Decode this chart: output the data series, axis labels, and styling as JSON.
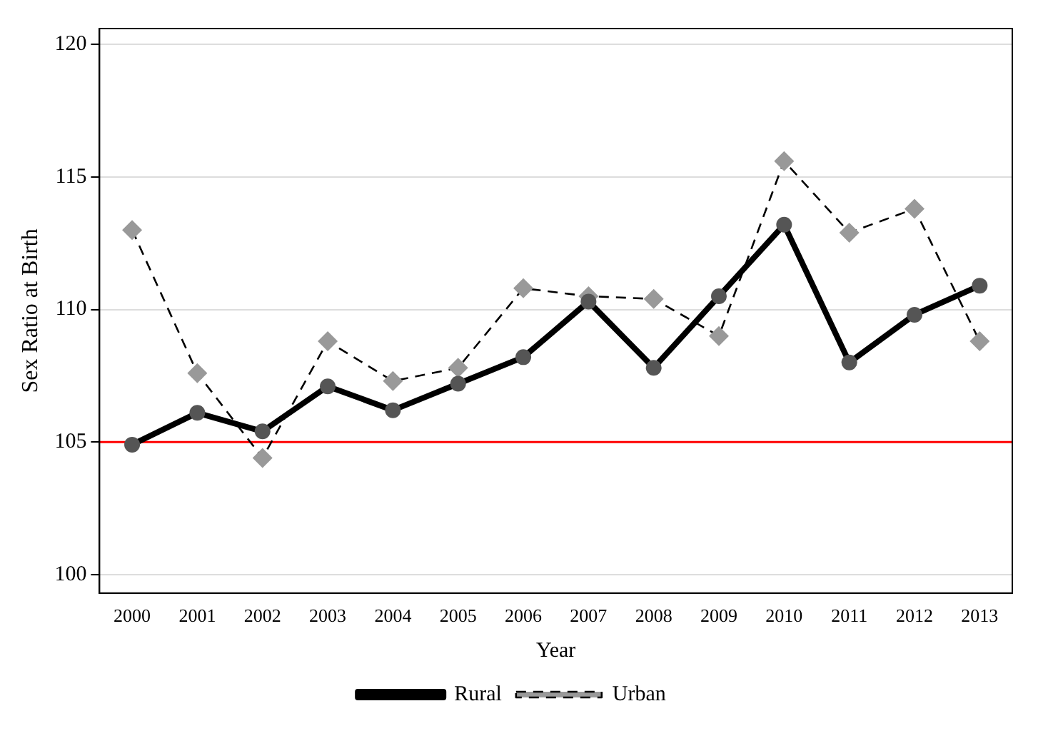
{
  "chart_data": {
    "type": "line",
    "xlabel": "Year",
    "ylabel": "Sex Ratio at Birth",
    "categories": [
      "2000",
      "2001",
      "2002",
      "2003",
      "2004",
      "2005",
      "2006",
      "2007",
      "2008",
      "2009",
      "2010",
      "2011",
      "2012",
      "2013"
    ],
    "series": [
      {
        "name": "Rural",
        "color": "#000000",
        "marker": "circle",
        "line_style": "solid",
        "values": [
          104.9,
          106.1,
          105.4,
          107.1,
          106.2,
          107.2,
          108.2,
          110.3,
          107.8,
          110.5,
          113.2,
          108.0,
          109.8,
          110.9
        ]
      },
      {
        "name": "Urban",
        "color": "#000000",
        "marker": "diamond",
        "line_style": "dashed",
        "values": [
          113.0,
          107.6,
          104.4,
          108.8,
          107.3,
          107.8,
          110.8,
          110.5,
          110.4,
          109.0,
          115.6,
          112.9,
          113.8,
          108.8
        ]
      }
    ],
    "ylim": [
      99.3,
      120.6
    ],
    "yticks": [
      100,
      105,
      110,
      115,
      120
    ],
    "grid": "y",
    "legend": "bottom",
    "ref_lines": [
      {
        "axis": "y",
        "value": 105,
        "color": "#ff0000"
      }
    ]
  }
}
